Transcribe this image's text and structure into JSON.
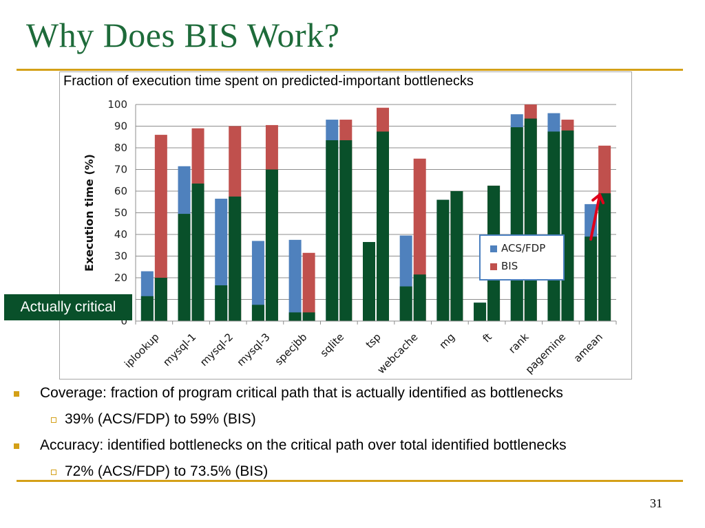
{
  "slide": {
    "title": "Why Does BIS Work?",
    "page_number": "31",
    "colors": {
      "title": "#1e6b3a",
      "rule": "#d4a017",
      "callout_bg": "#09502a",
      "arrow": "#e0001b"
    }
  },
  "callout": {
    "text": "Actually critical"
  },
  "bullets": [
    {
      "text": "Coverage: fraction of program critical path that is actually identified as bottlenecks",
      "level": 1
    },
    {
      "text": "39% (ACS/FDP) to 59% (BIS)",
      "level": 2
    },
    {
      "text": "Accuracy: identified bottlenecks on the critical path over total identified bottlenecks",
      "level": 1
    },
    {
      "text": "72% (ACS/FDP) to 73.5% (BIS)",
      "level": 2
    }
  ],
  "chart_data": {
    "type": "bar",
    "title": "Fraction of execution time spent on predicted-important bottlenecks",
    "ylabel": "Execution time (%)",
    "ylim": [
      0,
      100
    ],
    "yticks": [
      0,
      10,
      20,
      30,
      40,
      50,
      60,
      70,
      80,
      90,
      100
    ],
    "grid": true,
    "legend_position": "right",
    "categories": [
      "iplookup",
      "mysql-1",
      "mysql-2",
      "mysql-3",
      "specjbb",
      "sqlite",
      "tsp",
      "webcache",
      "mg",
      "ft",
      "rank",
      "pagemine",
      "amean"
    ],
    "series": [
      {
        "name": "ACS/FDP",
        "color": "#4f81bd",
        "covered": [
          11.5,
          49.5,
          16.5,
          7.5,
          4,
          83.5,
          36.5,
          16,
          56,
          8.5,
          89.5,
          87.5,
          39
        ],
        "values": [
          23,
          71.5,
          56.5,
          37,
          37.5,
          93,
          36.5,
          39.5,
          56,
          8.5,
          95.5,
          96,
          54
        ]
      },
      {
        "name": "BIS",
        "color": "#c0504d",
        "covered": [
          20,
          63.5,
          57.5,
          70,
          4,
          83.5,
          87.5,
          21.5,
          60,
          62.5,
          93.5,
          88,
          59
        ],
        "values": [
          86,
          89,
          90,
          90.5,
          31.5,
          93,
          98.5,
          75,
          60,
          62.5,
          100,
          93,
          81
        ]
      }
    ],
    "covered_label": "Actually critical",
    "covered_color": "#09502a"
  }
}
